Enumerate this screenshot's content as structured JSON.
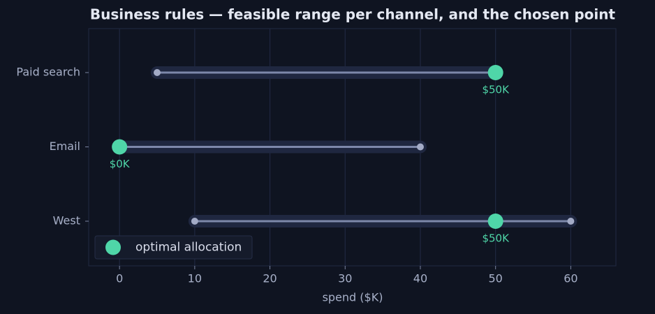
{
  "chart_data": {
    "type": "range",
    "title": "Business rules — feasible range per channel, and the chosen point",
    "x_label": "spend ($K)",
    "categories": [
      "Paid search",
      "Email",
      "West"
    ],
    "low": [
      5,
      0,
      10
    ],
    "high": [
      50,
      40,
      60
    ],
    "range_color": "#7d88aa",
    "optimal": {
      "name": "optimal allocation",
      "color": "#4fd6a8",
      "values": [
        50,
        0,
        50
      ],
      "value_labels": [
        "$50K",
        "$0K",
        "$50K"
      ]
    },
    "xlim": [
      -4.1,
      66.0
    ],
    "xticks": [
      0,
      10,
      20,
      30,
      40,
      50,
      60
    ],
    "grid": true,
    "legend": "lower left"
  }
}
